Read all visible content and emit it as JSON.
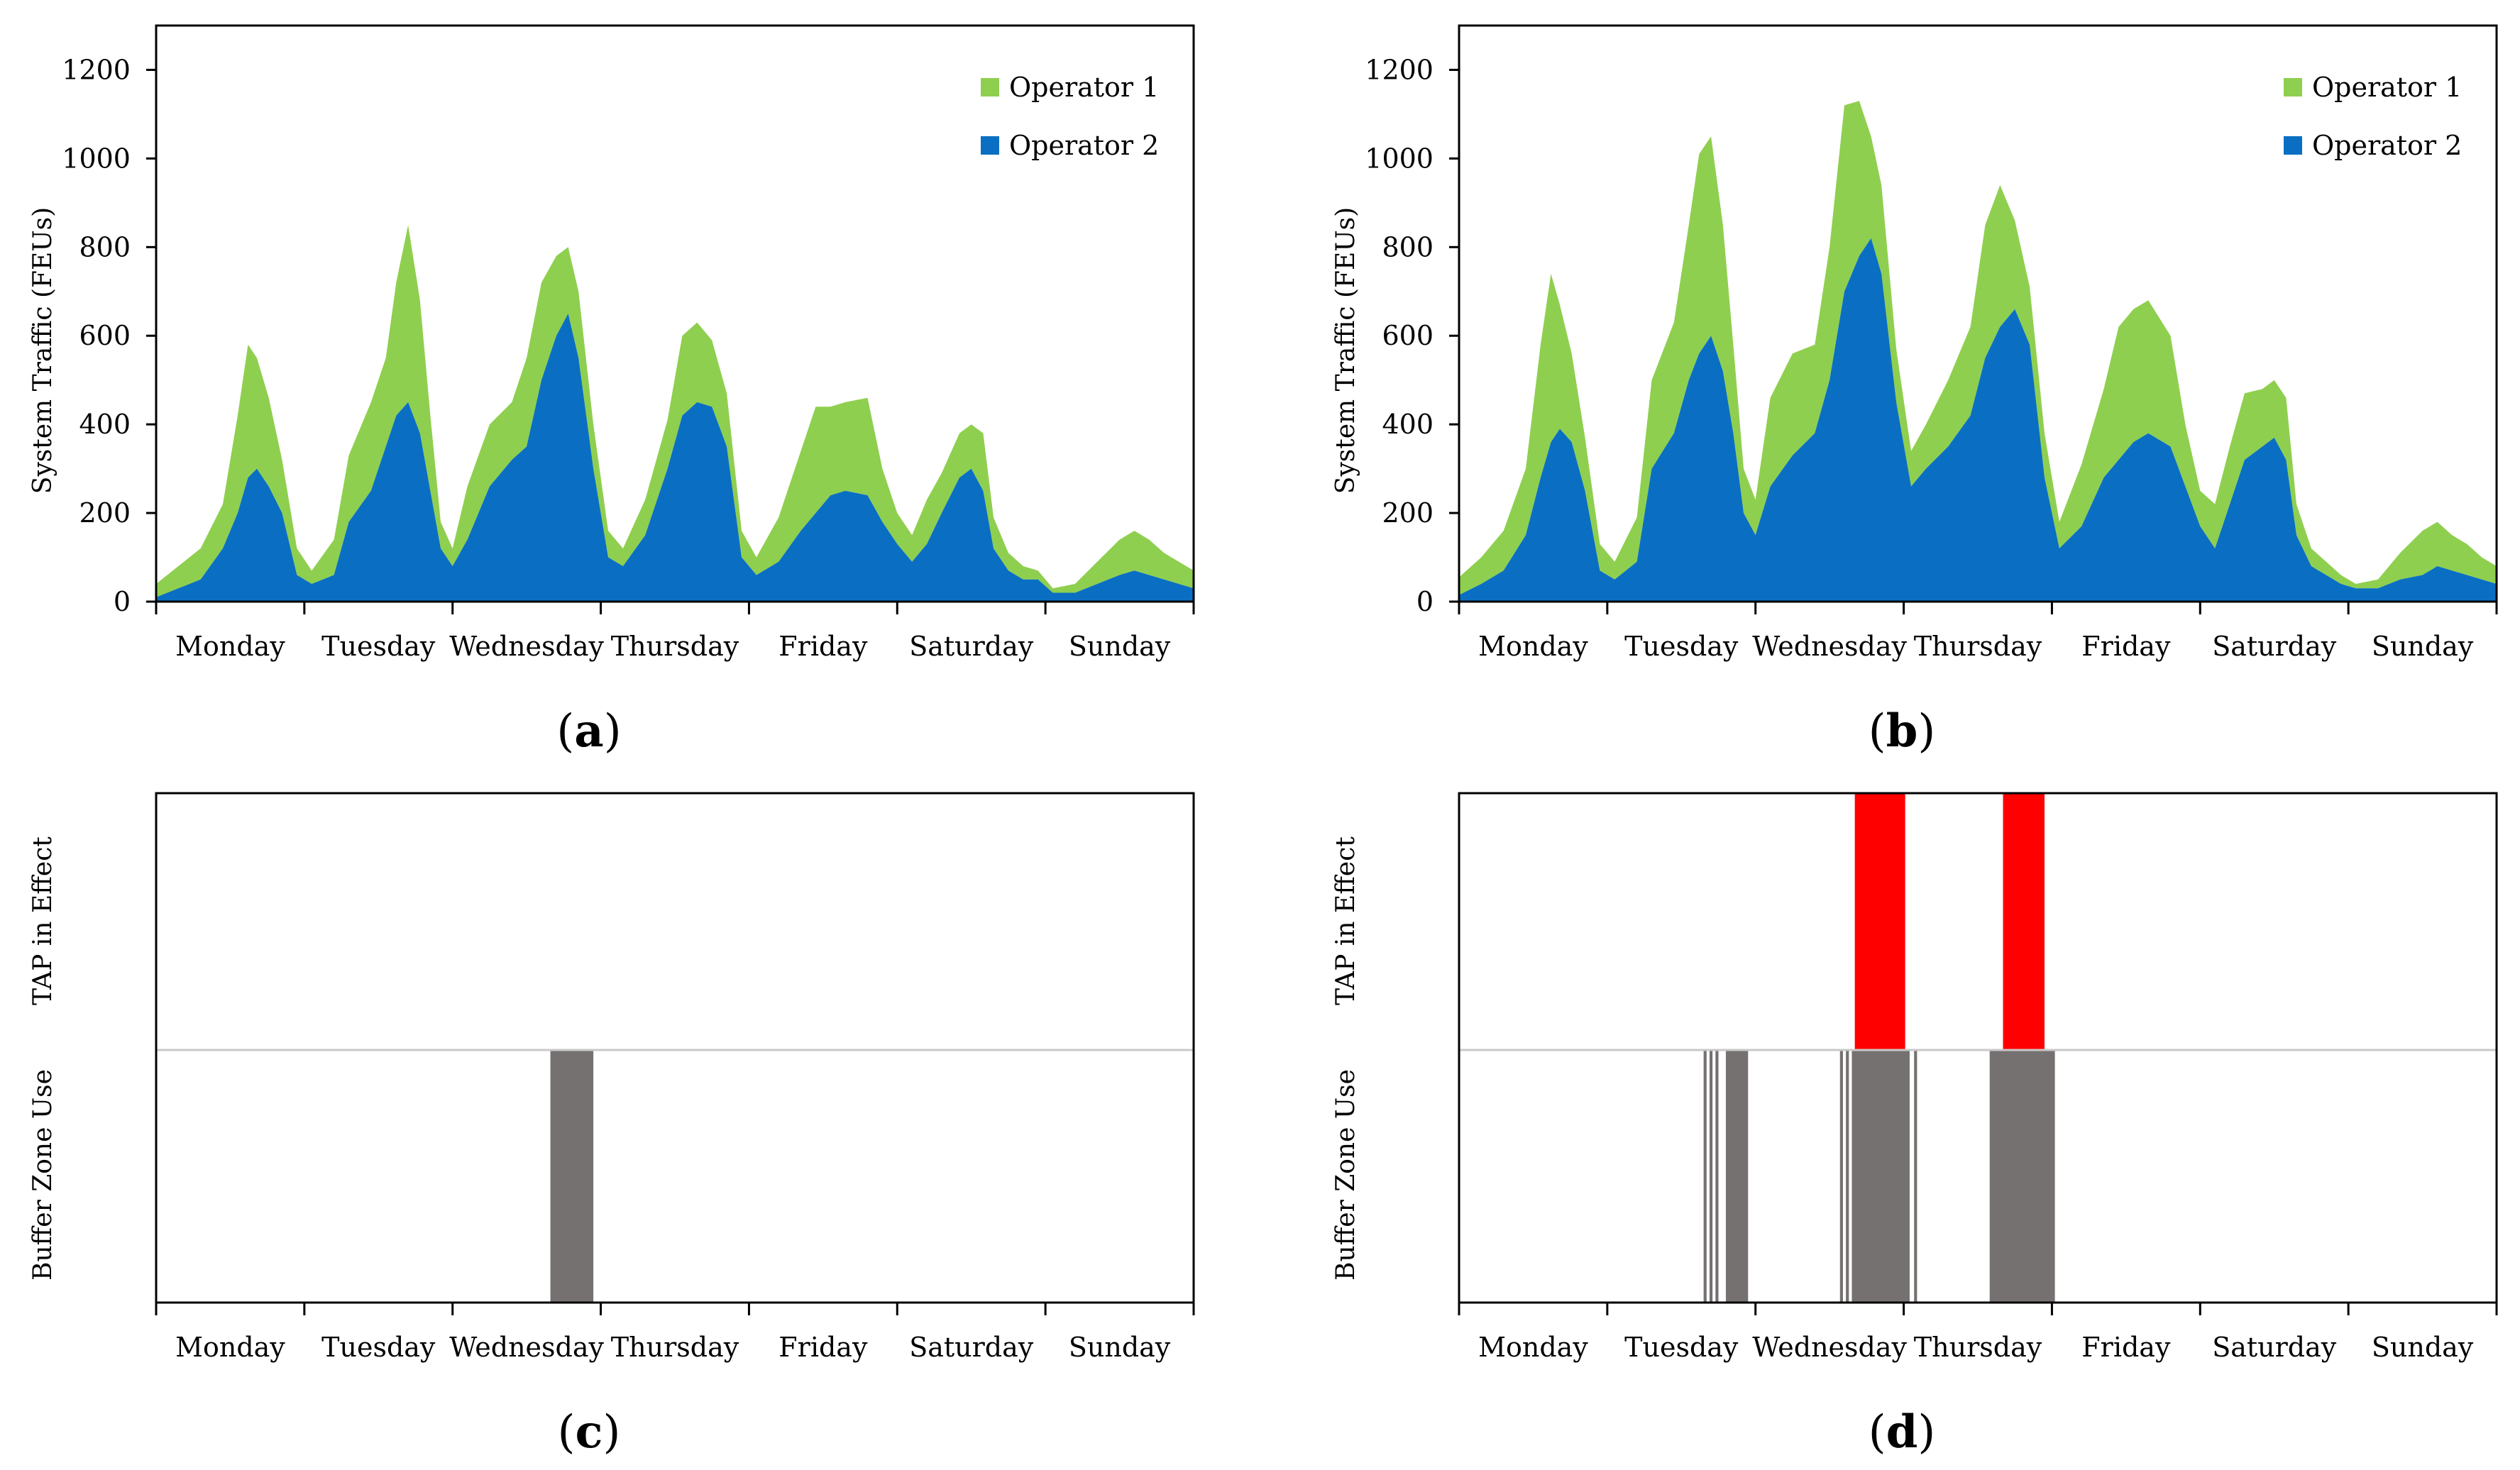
{
  "colors": {
    "operator1": "#8fcf4f",
    "operator2": "#0a6fc2",
    "tap": "#ff0000",
    "buffer": "#767171",
    "divider": "#c8c8c8",
    "axis": "#000000"
  },
  "labels": {
    "days": [
      "Monday",
      "Tuesday",
      "Wednesday",
      "Thursday",
      "Friday",
      "Saturday",
      "Sunday"
    ],
    "traffic_ylabel": "System Traffic (FEUs)",
    "tap_label": "TAP in Effect",
    "buffer_label": "Buffer Zone Use",
    "legend": [
      "Operator 1",
      "Operator 2"
    ]
  },
  "chart_data": [
    {
      "panel": "a",
      "type": "area",
      "stacked": true,
      "ylabel": "System Traffic (FEUs)",
      "ylim": [
        0,
        1300
      ],
      "yticks": [
        0,
        200,
        400,
        600,
        800,
        1000,
        1200
      ],
      "xlim": [
        0,
        7
      ],
      "categories": [
        "Monday",
        "Tuesday",
        "Wednesday",
        "Thursday",
        "Friday",
        "Saturday",
        "Sunday"
      ],
      "legend_position": "top-right",
      "series": [
        {
          "name": "Operator 2",
          "x": [
            0,
            0.15,
            0.3,
            0.45,
            0.55,
            0.62,
            0.68,
            0.76,
            0.85,
            0.95,
            1.05,
            1.2,
            1.3,
            1.45,
            1.55,
            1.62,
            1.7,
            1.78,
            1.85,
            1.92,
            2.0,
            2.1,
            2.25,
            2.4,
            2.5,
            2.6,
            2.7,
            2.78,
            2.85,
            2.95,
            3.05,
            3.15,
            3.3,
            3.45,
            3.55,
            3.65,
            3.75,
            3.85,
            3.95,
            4.05,
            4.2,
            4.35,
            4.45,
            4.55,
            4.65,
            4.8,
            4.9,
            5.0,
            5.1,
            5.2,
            5.3,
            5.42,
            5.5,
            5.58,
            5.65,
            5.75,
            5.85,
            5.95,
            6.05,
            6.2,
            6.35,
            6.5,
            6.6,
            6.7,
            6.8,
            6.9,
            7.0
          ],
          "values": [
            10,
            30,
            50,
            120,
            200,
            280,
            300,
            260,
            200,
            60,
            40,
            60,
            180,
            250,
            350,
            420,
            450,
            380,
            250,
            120,
            80,
            140,
            260,
            320,
            350,
            500,
            600,
            650,
            550,
            300,
            100,
            80,
            150,
            300,
            420,
            450,
            440,
            350,
            100,
            60,
            90,
            160,
            200,
            240,
            250,
            240,
            180,
            130,
            90,
            130,
            200,
            280,
            300,
            250,
            120,
            70,
            50,
            50,
            20,
            20,
            40,
            60,
            70,
            60,
            50,
            40,
            30
          ]
        },
        {
          "name": "Operator 1",
          "x": [
            0,
            0.15,
            0.3,
            0.45,
            0.55,
            0.62,
            0.68,
            0.76,
            0.85,
            0.95,
            1.05,
            1.2,
            1.3,
            1.45,
            1.55,
            1.62,
            1.7,
            1.78,
            1.85,
            1.92,
            2.0,
            2.1,
            2.25,
            2.4,
            2.5,
            2.6,
            2.7,
            2.78,
            2.85,
            2.95,
            3.05,
            3.15,
            3.3,
            3.45,
            3.55,
            3.65,
            3.75,
            3.85,
            3.95,
            4.05,
            4.2,
            4.35,
            4.45,
            4.55,
            4.65,
            4.8,
            4.9,
            5.0,
            5.1,
            5.2,
            5.3,
            5.42,
            5.5,
            5.58,
            5.65,
            5.75,
            5.85,
            5.95,
            6.05,
            6.2,
            6.35,
            6.5,
            6.6,
            6.7,
            6.8,
            6.9,
            7.0
          ],
          "values": [
            30,
            50,
            70,
            100,
            220,
            300,
            250,
            200,
            120,
            60,
            30,
            80,
            150,
            200,
            200,
            300,
            400,
            300,
            170,
            60,
            40,
            120,
            140,
            130,
            200,
            220,
            180,
            150,
            150,
            100,
            60,
            40,
            80,
            110,
            180,
            180,
            150,
            120,
            60,
            40,
            100,
            180,
            240,
            200,
            200,
            220,
            120,
            70,
            60,
            100,
            90,
            100,
            100,
            130,
            70,
            40,
            30,
            20,
            10,
            20,
            50,
            80,
            90,
            80,
            60,
            50,
            40
          ]
        }
      ]
    },
    {
      "panel": "b",
      "type": "area",
      "stacked": true,
      "ylabel": "System Traffic (FEUs)",
      "ylim": [
        0,
        1300
      ],
      "yticks": [
        0,
        200,
        400,
        600,
        800,
        1000,
        1200
      ],
      "xlim": [
        0,
        7
      ],
      "categories": [
        "Monday",
        "Tuesday",
        "Wednesday",
        "Thursday",
        "Friday",
        "Saturday",
        "Sunday"
      ],
      "legend_position": "top-right",
      "series": [
        {
          "name": "Operator 2",
          "x": [
            0,
            0.15,
            0.3,
            0.45,
            0.55,
            0.62,
            0.68,
            0.76,
            0.85,
            0.95,
            1.05,
            1.2,
            1.3,
            1.45,
            1.55,
            1.62,
            1.7,
            1.78,
            1.85,
            1.92,
            2.0,
            2.1,
            2.25,
            2.4,
            2.5,
            2.6,
            2.7,
            2.78,
            2.85,
            2.95,
            3.05,
            3.15,
            3.3,
            3.45,
            3.55,
            3.65,
            3.75,
            3.85,
            3.95,
            4.05,
            4.2,
            4.35,
            4.45,
            4.55,
            4.65,
            4.8,
            4.9,
            5.0,
            5.1,
            5.2,
            5.3,
            5.42,
            5.5,
            5.58,
            5.65,
            5.75,
            5.85,
            5.95,
            6.05,
            6.2,
            6.35,
            6.5,
            6.6,
            6.7,
            6.8,
            6.9,
            7.0
          ],
          "values": [
            15,
            40,
            70,
            150,
            280,
            360,
            390,
            360,
            250,
            70,
            50,
            90,
            300,
            380,
            500,
            560,
            600,
            520,
            380,
            200,
            150,
            260,
            330,
            380,
            500,
            700,
            780,
            820,
            740,
            450,
            260,
            300,
            350,
            420,
            550,
            620,
            660,
            580,
            280,
            120,
            170,
            280,
            320,
            360,
            380,
            350,
            260,
            170,
            120,
            220,
            320,
            350,
            370,
            320,
            150,
            80,
            60,
            40,
            30,
            30,
            50,
            60,
            80,
            70,
            60,
            50,
            40
          ]
        },
        {
          "name": "Operator 1",
          "x": [
            0,
            0.15,
            0.3,
            0.45,
            0.55,
            0.62,
            0.68,
            0.76,
            0.85,
            0.95,
            1.05,
            1.2,
            1.3,
            1.45,
            1.55,
            1.62,
            1.7,
            1.78,
            1.85,
            1.92,
            2.0,
            2.1,
            2.25,
            2.4,
            2.5,
            2.6,
            2.7,
            2.78,
            2.85,
            2.95,
            3.05,
            3.15,
            3.3,
            3.45,
            3.55,
            3.65,
            3.75,
            3.85,
            3.95,
            4.05,
            4.2,
            4.35,
            4.45,
            4.55,
            4.65,
            4.8,
            4.9,
            5.0,
            5.1,
            5.2,
            5.3,
            5.42,
            5.5,
            5.58,
            5.65,
            5.75,
            5.85,
            5.95,
            6.05,
            6.2,
            6.35,
            6.5,
            6.6,
            6.7,
            6.8,
            6.9,
            7.0
          ],
          "values": [
            40,
            60,
            90,
            150,
            300,
            380,
            280,
            200,
            120,
            60,
            40,
            100,
            200,
            250,
            350,
            450,
            450,
            330,
            200,
            100,
            80,
            200,
            230,
            200,
            300,
            420,
            350,
            230,
            200,
            120,
            80,
            100,
            150,
            200,
            300,
            320,
            200,
            130,
            100,
            60,
            140,
            200,
            300,
            300,
            300,
            250,
            140,
            80,
            100,
            130,
            150,
            130,
            130,
            140,
            70,
            40,
            30,
            20,
            10,
            20,
            60,
            100,
            100,
            80,
            70,
            50,
            40
          ]
        }
      ]
    },
    {
      "panel": "c",
      "type": "bar",
      "xlim": [
        0,
        7
      ],
      "categories": [
        "Monday",
        "Tuesday",
        "Wednesday",
        "Thursday",
        "Friday",
        "Saturday",
        "Sunday"
      ],
      "rows": [
        "TAP in Effect",
        "Buffer Zone Use"
      ],
      "tap_intervals": [],
      "buffer_intervals": [
        [
          2.66,
          2.95
        ]
      ]
    },
    {
      "panel": "d",
      "type": "bar",
      "xlim": [
        0,
        7
      ],
      "categories": [
        "Monday",
        "Tuesday",
        "Wednesday",
        "Thursday",
        "Friday",
        "Saturday",
        "Sunday"
      ],
      "rows": [
        "TAP in Effect",
        "Buffer Zone Use"
      ],
      "tap_intervals": [
        [
          2.67,
          3.01
        ],
        [
          3.67,
          3.95
        ]
      ],
      "buffer_intervals": [
        [
          1.65,
          1.67
        ],
        [
          1.69,
          1.71
        ],
        [
          1.73,
          1.75
        ],
        [
          1.8,
          1.95
        ],
        [
          2.57,
          2.59
        ],
        [
          2.61,
          2.63
        ],
        [
          2.65,
          3.04
        ],
        [
          3.07,
          3.09
        ],
        [
          3.58,
          4.02
        ]
      ]
    }
  ]
}
